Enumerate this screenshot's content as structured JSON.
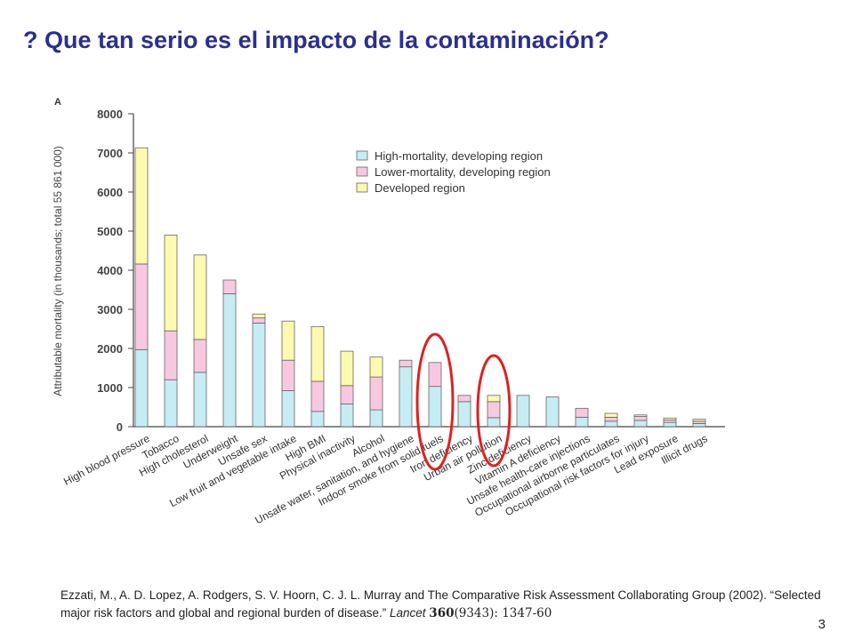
{
  "slide": {
    "title": "? Que tan serio es el impacto de la contaminación?",
    "number": "3"
  },
  "citation": {
    "text": "Ezzati, M., A. D. Lopez, A. Rodgers, S. V. Hoorn, C. J. L. Murray and The Comparative Risk Assessment Collaborating Group (2002). “Selected major risk factors and global and regional burden of disease.”",
    "journal": "Lancet",
    "volume": "360",
    "issue_pages": "(9343): 1347-60"
  },
  "chart_data": {
    "type": "bar",
    "stacked": true,
    "panel_label": "A",
    "ylabel": "Attributable mortality (in thousands; total 55 861 000)",
    "ylim": [
      0,
      8000
    ],
    "yticks": [
      0,
      1000,
      2000,
      3000,
      4000,
      5000,
      6000,
      7000,
      8000
    ],
    "grid": false,
    "legend_position": "top-right",
    "categories": [
      "High blood pressure",
      "Tobacco",
      "High cholesterol",
      "Underweight",
      "Unsafe sex",
      "Low fruit and vegetable intake",
      "High BMI",
      "Physical inactivity",
      "Alcohol",
      "Unsafe water, sanitation, and hygiene",
      "Indoor smoke from solid fuels",
      "Iron deficiency",
      "Urban air pollution",
      "Zinc deficiency",
      "Vitamin A deficiency",
      "Unsafe health-care injections",
      "Occupational airborne particulates",
      "Occupational risk factors for injury",
      "Lead exposure",
      "Illicit drugs"
    ],
    "series": [
      {
        "name": "High-mortality, developing region",
        "color": "#c6ecf4",
        "values": [
          1970,
          1200,
          1390,
          3400,
          2650,
          920,
          390,
          580,
          430,
          1530,
          1030,
          640,
          230,
          800,
          760,
          240,
          140,
          160,
          110,
          80
        ]
      },
      {
        "name": "Lower-mortality, developing region",
        "color": "#f8c8e0",
        "values": [
          2190,
          1250,
          840,
          350,
          130,
          780,
          770,
          470,
          840,
          170,
          610,
          160,
          410,
          0,
          0,
          230,
          100,
          100,
          60,
          60
        ]
      },
      {
        "name": "Developed region",
        "color": "#fcfaae",
        "values": [
          2970,
          2450,
          2160,
          0,
          100,
          1000,
          1400,
          880,
          510,
          0,
          0,
          0,
          160,
          0,
          0,
          0,
          100,
          40,
          50,
          50
        ]
      }
    ],
    "annotations": [
      {
        "type": "ellipse",
        "color": "#dd2222",
        "target": "Indoor smoke from solid fuels"
      },
      {
        "type": "ellipse",
        "color": "#dd2222",
        "target": "Urban air pollution"
      }
    ]
  }
}
